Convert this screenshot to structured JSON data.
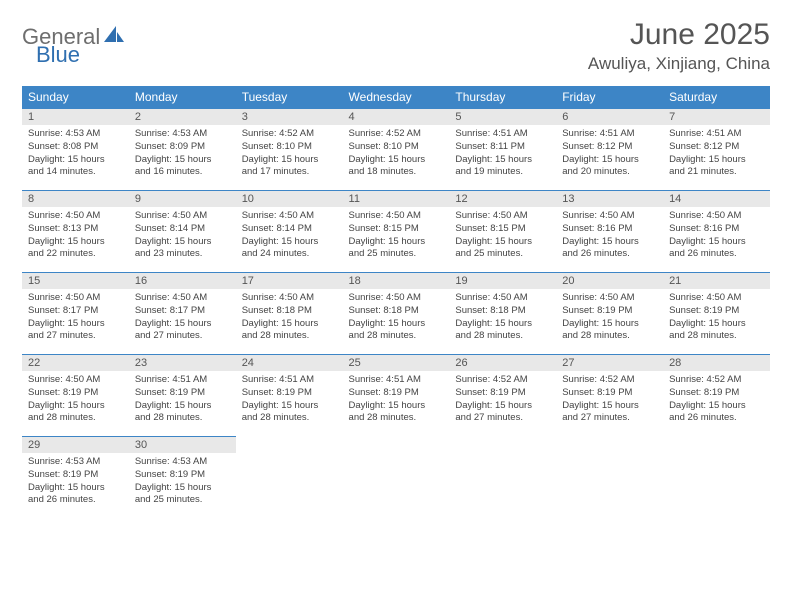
{
  "logo": {
    "word1": "General",
    "word2": "Blue",
    "color1": "#6e6e6e",
    "color2": "#2f6fb0",
    "icon_color": "#2f6fb0"
  },
  "title": "June 2025",
  "location": "Awuliya, Xinjiang, China",
  "colors": {
    "header_bg": "#3d85c6",
    "header_text": "#ffffff",
    "daynum_bg": "#e8e8e8",
    "daynum_text": "#555555",
    "cell_border": "#3d85c6",
    "body_text": "#444444",
    "page_bg": "#ffffff"
  },
  "weekdays": [
    "Sunday",
    "Monday",
    "Tuesday",
    "Wednesday",
    "Thursday",
    "Friday",
    "Saturday"
  ],
  "weeks": [
    [
      {
        "n": "1",
        "sr": "4:53 AM",
        "ss": "8:08 PM",
        "dl": "15 hours and 14 minutes."
      },
      {
        "n": "2",
        "sr": "4:53 AM",
        "ss": "8:09 PM",
        "dl": "15 hours and 16 minutes."
      },
      {
        "n": "3",
        "sr": "4:52 AM",
        "ss": "8:10 PM",
        "dl": "15 hours and 17 minutes."
      },
      {
        "n": "4",
        "sr": "4:52 AM",
        "ss": "8:10 PM",
        "dl": "15 hours and 18 minutes."
      },
      {
        "n": "5",
        "sr": "4:51 AM",
        "ss": "8:11 PM",
        "dl": "15 hours and 19 minutes."
      },
      {
        "n": "6",
        "sr": "4:51 AM",
        "ss": "8:12 PM",
        "dl": "15 hours and 20 minutes."
      },
      {
        "n": "7",
        "sr": "4:51 AM",
        "ss": "8:12 PM",
        "dl": "15 hours and 21 minutes."
      }
    ],
    [
      {
        "n": "8",
        "sr": "4:50 AM",
        "ss": "8:13 PM",
        "dl": "15 hours and 22 minutes."
      },
      {
        "n": "9",
        "sr": "4:50 AM",
        "ss": "8:14 PM",
        "dl": "15 hours and 23 minutes."
      },
      {
        "n": "10",
        "sr": "4:50 AM",
        "ss": "8:14 PM",
        "dl": "15 hours and 24 minutes."
      },
      {
        "n": "11",
        "sr": "4:50 AM",
        "ss": "8:15 PM",
        "dl": "15 hours and 25 minutes."
      },
      {
        "n": "12",
        "sr": "4:50 AM",
        "ss": "8:15 PM",
        "dl": "15 hours and 25 minutes."
      },
      {
        "n": "13",
        "sr": "4:50 AM",
        "ss": "8:16 PM",
        "dl": "15 hours and 26 minutes."
      },
      {
        "n": "14",
        "sr": "4:50 AM",
        "ss": "8:16 PM",
        "dl": "15 hours and 26 minutes."
      }
    ],
    [
      {
        "n": "15",
        "sr": "4:50 AM",
        "ss": "8:17 PM",
        "dl": "15 hours and 27 minutes."
      },
      {
        "n": "16",
        "sr": "4:50 AM",
        "ss": "8:17 PM",
        "dl": "15 hours and 27 minutes."
      },
      {
        "n": "17",
        "sr": "4:50 AM",
        "ss": "8:18 PM",
        "dl": "15 hours and 28 minutes."
      },
      {
        "n": "18",
        "sr": "4:50 AM",
        "ss": "8:18 PM",
        "dl": "15 hours and 28 minutes."
      },
      {
        "n": "19",
        "sr": "4:50 AM",
        "ss": "8:18 PM",
        "dl": "15 hours and 28 minutes."
      },
      {
        "n": "20",
        "sr": "4:50 AM",
        "ss": "8:19 PM",
        "dl": "15 hours and 28 minutes."
      },
      {
        "n": "21",
        "sr": "4:50 AM",
        "ss": "8:19 PM",
        "dl": "15 hours and 28 minutes."
      }
    ],
    [
      {
        "n": "22",
        "sr": "4:50 AM",
        "ss": "8:19 PM",
        "dl": "15 hours and 28 minutes."
      },
      {
        "n": "23",
        "sr": "4:51 AM",
        "ss": "8:19 PM",
        "dl": "15 hours and 28 minutes."
      },
      {
        "n": "24",
        "sr": "4:51 AM",
        "ss": "8:19 PM",
        "dl": "15 hours and 28 minutes."
      },
      {
        "n": "25",
        "sr": "4:51 AM",
        "ss": "8:19 PM",
        "dl": "15 hours and 28 minutes."
      },
      {
        "n": "26",
        "sr": "4:52 AM",
        "ss": "8:19 PM",
        "dl": "15 hours and 27 minutes."
      },
      {
        "n": "27",
        "sr": "4:52 AM",
        "ss": "8:19 PM",
        "dl": "15 hours and 27 minutes."
      },
      {
        "n": "28",
        "sr": "4:52 AM",
        "ss": "8:19 PM",
        "dl": "15 hours and 26 minutes."
      }
    ],
    [
      {
        "n": "29",
        "sr": "4:53 AM",
        "ss": "8:19 PM",
        "dl": "15 hours and 26 minutes."
      },
      {
        "n": "30",
        "sr": "4:53 AM",
        "ss": "8:19 PM",
        "dl": "15 hours and 25 minutes."
      },
      null,
      null,
      null,
      null,
      null
    ]
  ],
  "labels": {
    "sunrise": "Sunrise:",
    "sunset": "Sunset:",
    "daylight": "Daylight:"
  }
}
